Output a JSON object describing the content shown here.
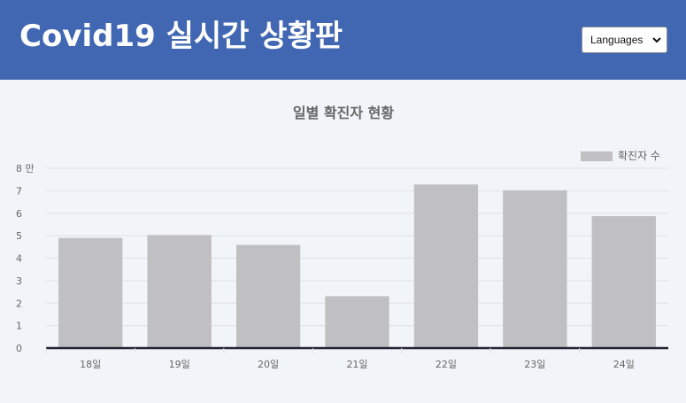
{
  "header": {
    "title": "Covid19 실시간 상황판",
    "language_select": {
      "selected": "Languages"
    }
  },
  "colors": {
    "header_bg": "#4167b3",
    "page_bg": "#f1f4f8",
    "bar": "#c0c0c2",
    "axis": "#222233"
  },
  "icons": {
    "dropdown": "chevron-down-icon"
  },
  "chart_data": {
    "type": "bar",
    "title": "일별 확진자 현황",
    "categories": [
      "18일",
      "19일",
      "20일",
      "21일",
      "22일",
      "23일",
      "24일"
    ],
    "series": [
      {
        "name": "확진자 수",
        "values": [
          49000,
          50300,
          45900,
          23100,
          72800,
          70200,
          58700
        ]
      }
    ],
    "ylim": [
      0,
      80000
    ],
    "y_ticks": [
      "0",
      "1",
      "2",
      "3",
      "4",
      "5",
      "6",
      "7",
      "8 만"
    ],
    "legend_position": "top-right",
    "grid": true
  }
}
